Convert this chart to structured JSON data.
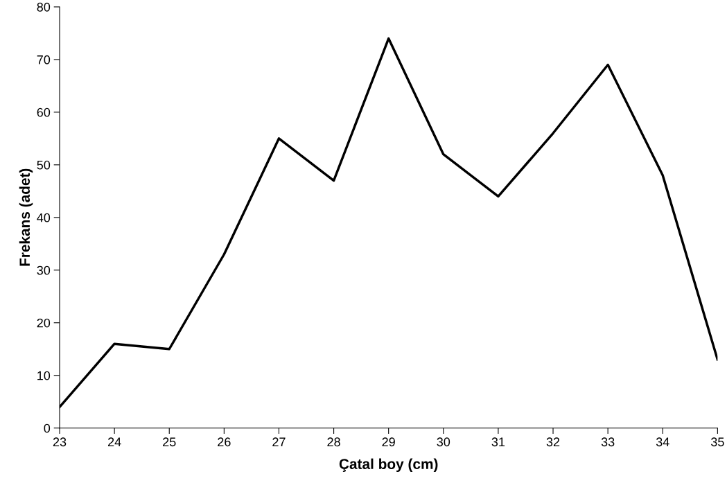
{
  "chart_data": {
    "type": "line",
    "xlabel": "Çatal boy (cm)",
    "ylabel": "Frekans (adet)",
    "x": [
      23,
      24,
      25,
      26,
      27,
      28,
      29,
      30,
      31,
      32,
      33,
      34,
      35
    ],
    "series": [
      {
        "color": "#000000",
        "values": [
          4,
          16,
          15,
          33,
          55,
          47,
          74,
          52,
          44,
          56,
          69,
          48,
          13
        ]
      }
    ],
    "xlim": [
      23,
      35
    ],
    "xticks": [
      23,
      24,
      25,
      26,
      27,
      28,
      29,
      30,
      31,
      32,
      33,
      34,
      35
    ],
    "ylim": [
      0,
      80
    ],
    "yticks": [
      0,
      10,
      20,
      30,
      40,
      50,
      60,
      70,
      80
    ],
    "grid": false,
    "legend": false,
    "marker": "none",
    "line_style": "solid"
  }
}
